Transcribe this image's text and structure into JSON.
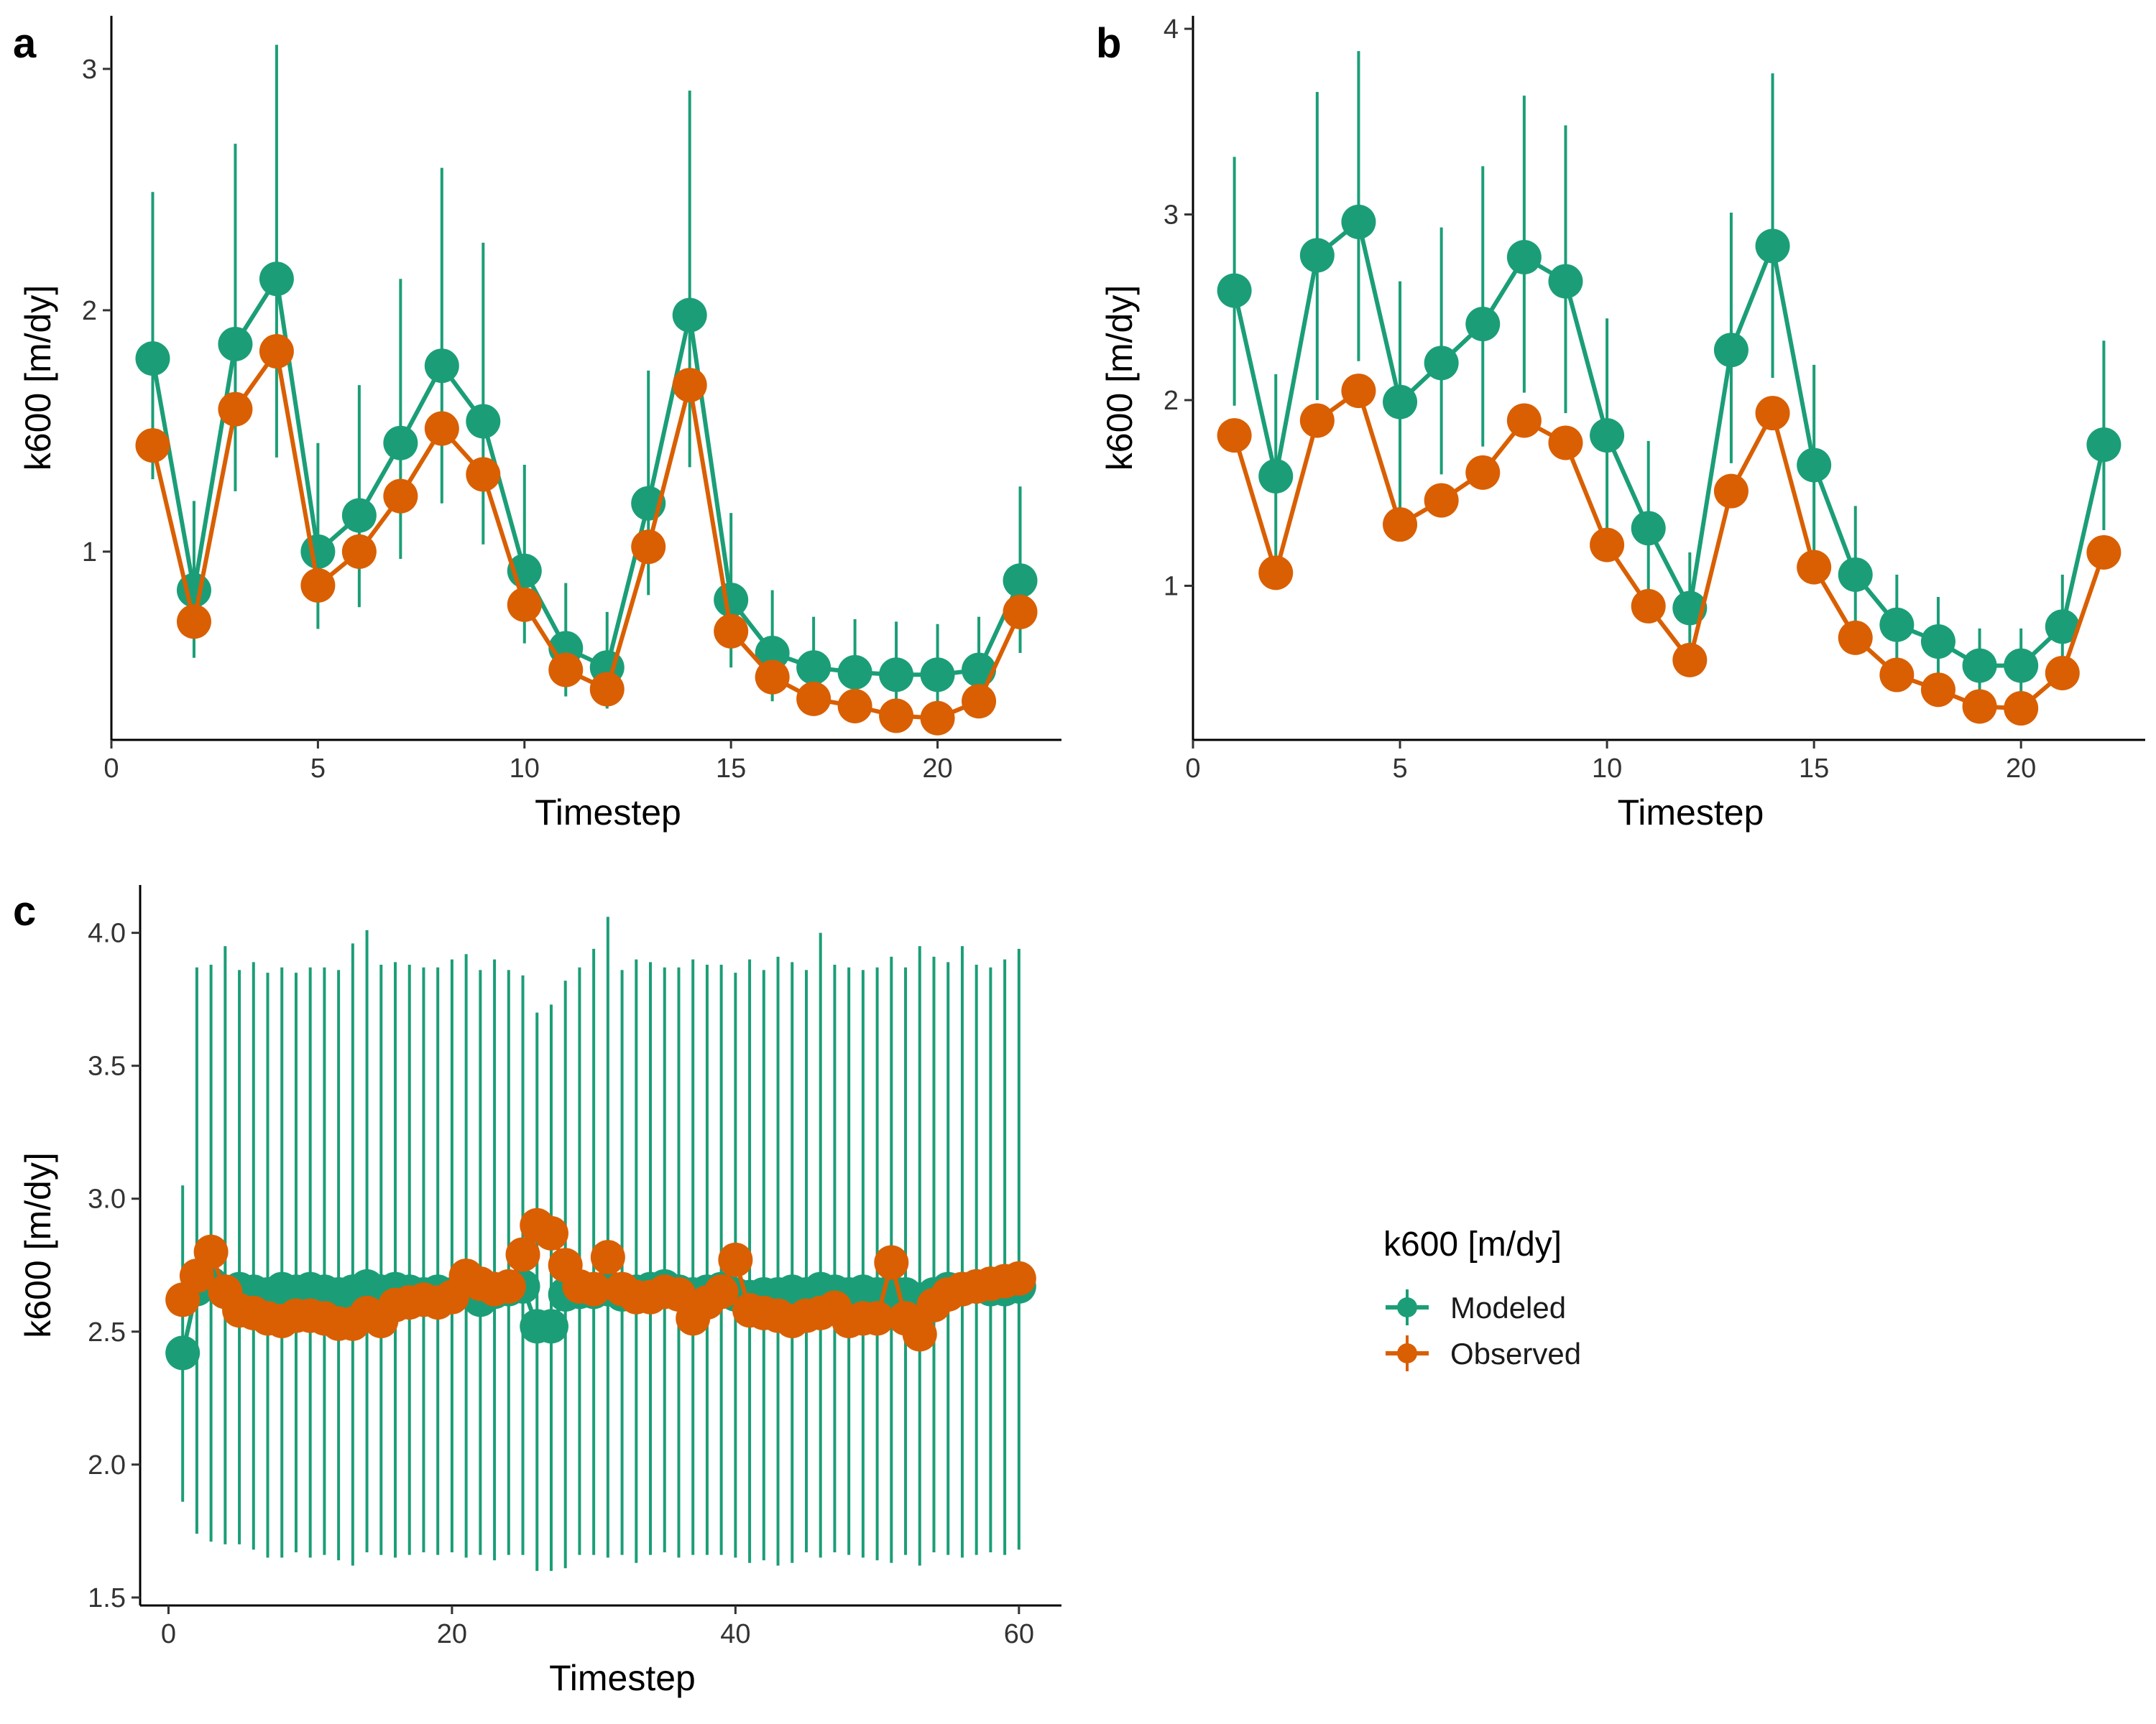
{
  "colors": {
    "modeled": "#1b9e77",
    "observed": "#d95f02",
    "axis": "#000000"
  },
  "legend": {
    "title": "k600 [m/dy]",
    "items": [
      {
        "label": "Modeled",
        "color": "#1b9e77"
      },
      {
        "label": "Observed",
        "color": "#d95f02"
      }
    ]
  },
  "chart_data": [
    {
      "panel": "a",
      "type": "line",
      "xlabel": "Timestep",
      "ylabel": "k600 [m/dy]",
      "xlim": [
        0,
        23
      ],
      "ylim": [
        0.22,
        3.22
      ],
      "xticks": [
        0,
        5,
        10,
        15,
        20
      ],
      "yticks": [
        1,
        2,
        3
      ],
      "x": [
        1,
        2,
        3,
        4,
        5,
        6,
        7,
        8,
        9,
        10,
        11,
        12,
        13,
        14,
        15,
        16,
        17,
        18,
        19,
        20,
        21,
        22
      ],
      "series": [
        {
          "name": "Modeled",
          "color": "#1b9e77",
          "values": [
            1.8,
            0.84,
            1.86,
            2.13,
            1.0,
            1.15,
            1.45,
            1.77,
            1.54,
            0.92,
            0.6,
            0.52,
            1.2,
            1.98,
            0.8,
            0.58,
            0.52,
            0.5,
            0.49,
            0.49,
            0.51,
            0.88
          ],
          "lower": [
            1.3,
            0.56,
            1.25,
            1.39,
            0.68,
            0.77,
            0.97,
            1.2,
            1.03,
            0.62,
            0.4,
            0.35,
            0.82,
            1.35,
            0.52,
            0.38,
            0.33,
            0.33,
            0.32,
            0.32,
            0.34,
            0.58
          ],
          "upper": [
            2.49,
            1.21,
            2.69,
            3.1,
            1.45,
            1.69,
            2.13,
            2.59,
            2.28,
            1.36,
            0.87,
            0.75,
            1.75,
            2.91,
            1.16,
            0.84,
            0.73,
            0.72,
            0.71,
            0.7,
            0.73,
            1.27
          ]
        },
        {
          "name": "Observed",
          "color": "#d95f02",
          "values": [
            1.44,
            0.71,
            1.59,
            1.83,
            0.86,
            1.0,
            1.23,
            1.51,
            1.32,
            0.78,
            0.51,
            0.43,
            1.02,
            1.69,
            0.67,
            0.48,
            0.39,
            0.36,
            0.32,
            0.31,
            0.38,
            0.75
          ]
        }
      ]
    },
    {
      "panel": "b",
      "type": "line",
      "xlabel": "Timestep",
      "ylabel": "k600 [m/dy]",
      "xlim": [
        0,
        23
      ],
      "ylim": [
        0.17,
        4.07
      ],
      "xticks": [
        0,
        5,
        10,
        15,
        20
      ],
      "yticks": [
        1,
        2,
        3,
        4
      ],
      "x": [
        1,
        2,
        3,
        4,
        5,
        6,
        7,
        8,
        9,
        10,
        11,
        12,
        13,
        14,
        15,
        16,
        17,
        18,
        19,
        20,
        21,
        22
      ],
      "series": [
        {
          "name": "Modeled",
          "color": "#1b9e77",
          "values": [
            2.59,
            1.59,
            2.78,
            2.96,
            1.99,
            2.2,
            2.41,
            2.77,
            2.64,
            1.81,
            1.31,
            0.88,
            2.27,
            2.83,
            1.65,
            1.06,
            0.79,
            0.7,
            0.57,
            0.57,
            0.78,
            1.76
          ],
          "lower": [
            1.97,
            1.1,
            2.0,
            2.21,
            1.41,
            1.6,
            1.75,
            2.04,
            1.93,
            1.28,
            0.89,
            0.61,
            1.66,
            2.12,
            1.16,
            0.73,
            0.53,
            0.48,
            0.39,
            0.38,
            0.52,
            1.3
          ],
          "upper": [
            3.31,
            2.14,
            3.66,
            3.88,
            2.64,
            2.93,
            3.26,
            3.64,
            3.48,
            2.44,
            1.78,
            1.18,
            3.01,
            3.76,
            2.19,
            1.43,
            1.06,
            0.94,
            0.77,
            0.77,
            1.06,
            2.32
          ]
        },
        {
          "name": "Observed",
          "color": "#d95f02",
          "values": [
            1.81,
            1.07,
            1.89,
            2.05,
            1.33,
            1.46,
            1.61,
            1.89,
            1.77,
            1.22,
            0.89,
            0.6,
            1.51,
            1.93,
            1.1,
            0.72,
            0.52,
            0.44,
            0.35,
            0.34,
            0.53,
            1.18
          ]
        }
      ]
    },
    {
      "panel": "c",
      "type": "line",
      "xlabel": "Timestep",
      "ylabel": "k600 [m/dy]",
      "xlim": [
        -2,
        63
      ],
      "ylim": [
        1.47,
        4.18
      ],
      "xticks": [
        0,
        20,
        40,
        60
      ],
      "yticks": [
        1.5,
        2.0,
        2.5,
        3.0,
        3.5,
        4.0
      ],
      "ytick_labels": [
        "1.5",
        "2.0",
        "2.5",
        "3.0",
        "3.5",
        "4.0"
      ],
      "x": [
        1,
        2,
        3,
        4,
        5,
        6,
        7,
        8,
        9,
        10,
        11,
        12,
        13,
        14,
        15,
        16,
        17,
        18,
        19,
        20,
        21,
        22,
        23,
        24,
        25,
        26,
        27,
        28,
        29,
        30,
        31,
        32,
        33,
        34,
        35,
        36,
        37,
        38,
        39,
        40,
        41,
        42,
        43,
        44,
        45,
        46,
        47,
        48,
        49,
        50,
        51,
        52,
        53,
        54,
        55,
        56,
        57,
        58,
        59,
        60
      ],
      "series": [
        {
          "name": "Modeled",
          "color": "#1b9e77",
          "values": [
            2.42,
            2.66,
            2.68,
            2.65,
            2.66,
            2.65,
            2.64,
            2.66,
            2.65,
            2.66,
            2.65,
            2.64,
            2.65,
            2.67,
            2.65,
            2.66,
            2.65,
            2.64,
            2.65,
            2.64,
            2.65,
            2.62,
            2.65,
            2.66,
            2.67,
            2.52,
            2.52,
            2.64,
            2.65,
            2.65,
            2.66,
            2.64,
            2.65,
            2.66,
            2.67,
            2.65,
            2.64,
            2.65,
            2.66,
            2.64,
            2.63,
            2.64,
            2.64,
            2.65,
            2.64,
            2.66,
            2.65,
            2.64,
            2.65,
            2.64,
            2.65,
            2.64,
            2.62,
            2.64,
            2.66,
            2.66,
            2.67,
            2.66,
            2.66,
            2.67
          ],
          "lower": [
            1.86,
            1.74,
            1.71,
            1.7,
            1.7,
            1.68,
            1.65,
            1.65,
            1.67,
            1.65,
            1.66,
            1.64,
            1.62,
            1.67,
            1.66,
            1.65,
            1.66,
            1.67,
            1.66,
            1.67,
            1.65,
            1.66,
            1.64,
            1.66,
            1.66,
            1.6,
            1.6,
            1.61,
            1.66,
            1.66,
            1.65,
            1.66,
            1.63,
            1.66,
            1.67,
            1.65,
            1.66,
            1.66,
            1.66,
            1.65,
            1.63,
            1.64,
            1.62,
            1.63,
            1.67,
            1.65,
            1.67,
            1.66,
            1.65,
            1.64,
            1.63,
            1.66,
            1.62,
            1.67,
            1.66,
            1.65,
            1.66,
            1.67,
            1.66,
            1.68
          ],
          "upper": [
            3.05,
            3.87,
            3.88,
            3.95,
            3.86,
            3.89,
            3.85,
            3.87,
            3.85,
            3.87,
            3.87,
            3.86,
            3.96,
            4.01,
            3.88,
            3.89,
            3.88,
            3.87,
            3.87,
            3.9,
            3.92,
            3.86,
            3.9,
            3.86,
            3.84,
            3.7,
            3.73,
            3.82,
            3.87,
            3.94,
            4.06,
            3.86,
            3.9,
            3.89,
            3.87,
            3.87,
            3.9,
            3.88,
            3.88,
            3.85,
            3.9,
            3.86,
            3.91,
            3.89,
            3.86,
            4.0,
            3.88,
            3.87,
            3.86,
            3.87,
            3.91,
            3.87,
            3.95,
            3.91,
            3.89,
            3.95,
            3.88,
            3.87,
            3.9,
            3.94
          ]
        },
        {
          "name": "Observed",
          "color": "#d95f02",
          "values": [
            2.62,
            2.71,
            2.8,
            2.65,
            2.58,
            2.57,
            2.55,
            2.54,
            2.56,
            2.56,
            2.55,
            2.53,
            2.53,
            2.57,
            2.54,
            2.6,
            2.61,
            2.62,
            2.61,
            2.63,
            2.71,
            2.68,
            2.66,
            2.67,
            2.79,
            2.9,
            2.87,
            2.75,
            2.67,
            2.66,
            2.78,
            2.66,
            2.63,
            2.63,
            2.65,
            2.64,
            2.55,
            2.61,
            2.65,
            2.77,
            2.58,
            2.57,
            2.56,
            2.54,
            2.56,
            2.57,
            2.59,
            2.54,
            2.55,
            2.55,
            2.76,
            2.55,
            2.49,
            2.6,
            2.64,
            2.66,
            2.67,
            2.68,
            2.69,
            2.7
          ]
        }
      ]
    }
  ]
}
